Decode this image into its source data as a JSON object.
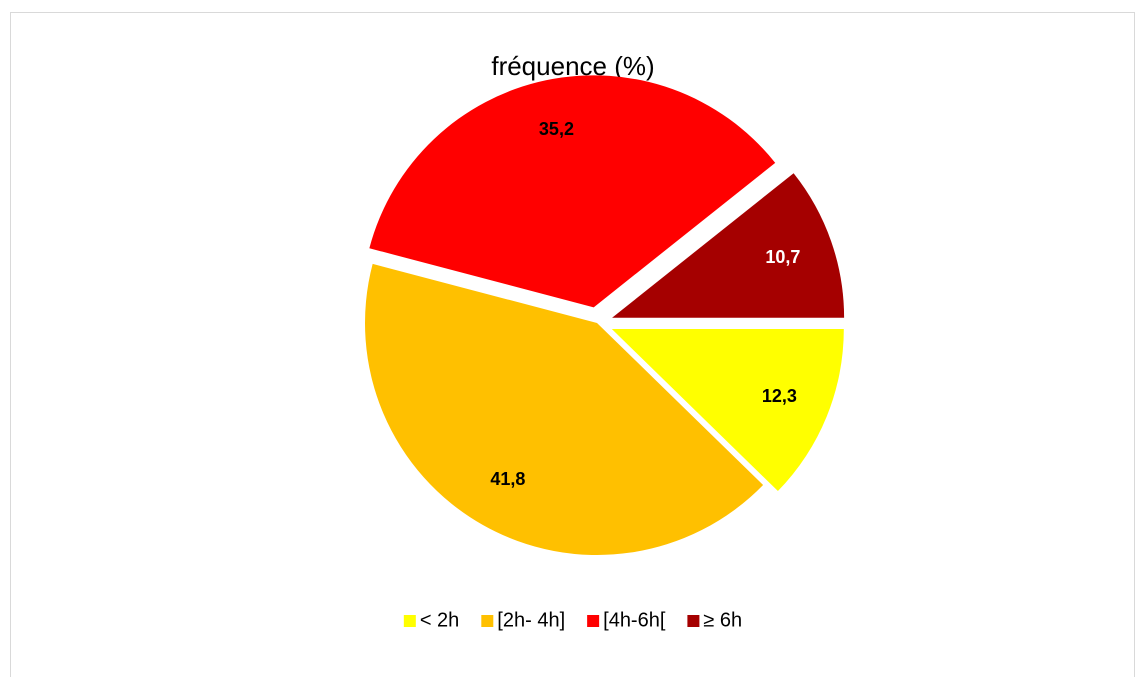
{
  "chart_data": {
    "type": "pie",
    "title": "fréquence (%)",
    "categories": [
      "< 2h",
      "[2h- 4h]",
      "[4h-6h[",
      "≥ 6h"
    ],
    "values": [
      12.3,
      41.8,
      35.2,
      10.7
    ],
    "value_labels": [
      "12,3",
      "41,8",
      "35,2",
      "10,7"
    ],
    "colors": [
      "#ffff00",
      "#ffc000",
      "#ff0000",
      "#a50000"
    ],
    "legend": "bottom"
  }
}
